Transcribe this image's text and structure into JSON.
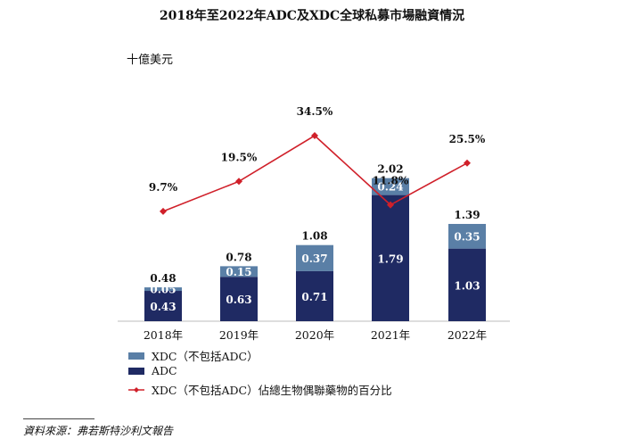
{
  "chart_data": {
    "type": "bar",
    "title": "2018年至2022年ADC及XDC全球私募市場融資情況",
    "unit_label": "十億美元",
    "categories": [
      "2018年",
      "2019年",
      "2020年",
      "2021年",
      "2022年"
    ],
    "series": [
      {
        "name": "ADC",
        "values": [
          0.43,
          0.63,
          0.71,
          1.79,
          1.03
        ],
        "color": "#1f2a63"
      },
      {
        "name": "XDC（不包括ADC）",
        "values": [
          0.05,
          0.15,
          0.37,
          0.24,
          0.35
        ],
        "color": "#5a7fa6"
      }
    ],
    "totals": [
      0.48,
      0.78,
      1.08,
      2.02,
      1.39
    ],
    "total_labels": [
      "0.48",
      "0.78",
      "1.08",
      "2.02",
      "1.39"
    ],
    "adc_labels": [
      "0.43",
      "0.63",
      "0.71",
      "1.79",
      "1.03"
    ],
    "xdc_labels": [
      "0.05",
      "0.15",
      "0.37",
      "0.24",
      "0.35"
    ],
    "line_series": {
      "name": "XDC（不包括ADC）佔總生物偶聯藥物的百分比",
      "values": [
        9.7,
        19.5,
        34.5,
        11.8,
        25.5
      ],
      "labels": [
        "9.7%",
        "19.5%",
        "34.5%",
        "11.8%",
        "25.5%"
      ],
      "color": "#d0202a"
    },
    "legend": [
      "XDC（不包括ADC）",
      "ADC",
      "XDC（不包括ADC）佔總生物偶聯藥物的百分比"
    ],
    "source": "資料來源：弗若斯特沙利文報告"
  }
}
